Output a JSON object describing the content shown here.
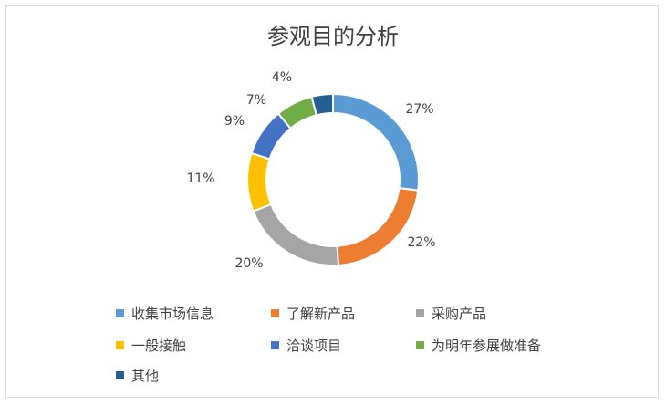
{
  "chart_data": {
    "type": "pie",
    "title": "参观目的分析",
    "categories": [
      "收集市场信息",
      "了解新产品",
      "采购产品",
      "一般接触",
      "洽谈项目",
      "为明年参展做准备",
      "其他"
    ],
    "values": [
      27,
      22,
      20,
      11,
      9,
      7,
      4
    ],
    "labels": [
      "27%",
      "22%",
      "20%",
      "11%",
      "9%",
      "7%",
      "4%"
    ],
    "colors": [
      "#5b9bd5",
      "#ed7d31",
      "#a5a5a5",
      "#ffc000",
      "#4472c4",
      "#70ad47",
      "#255e91"
    ],
    "legend": "bottom"
  }
}
